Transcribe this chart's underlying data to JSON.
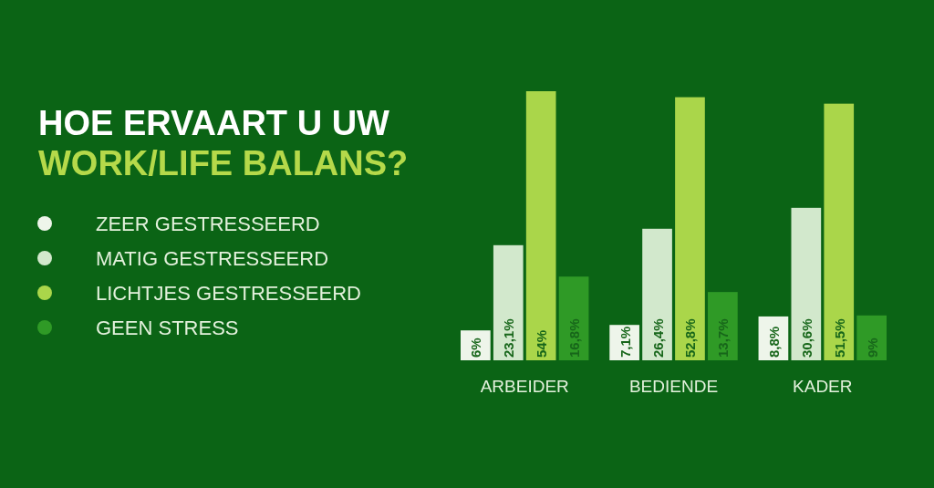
{
  "chart_data": {
    "type": "bar",
    "title": "HOE ERVAART U UW",
    "subtitle": "WORK/LIFE BALANS?",
    "categories": [
      "ARBEIDER",
      "BEDIENDE",
      "KADER"
    ],
    "series": [
      {
        "name": "ZEER GESTRESSEERD",
        "color": "#eef5ea",
        "values": [
          6,
          7.1,
          8.8
        ],
        "value_labels": [
          "6%",
          "7,1%",
          "8,8%"
        ]
      },
      {
        "name": "MATIG GESTRESSEERD",
        "color": "#d2e8cc",
        "values": [
          23.1,
          26.4,
          30.6
        ],
        "value_labels": [
          "23,1%",
          "26,4%",
          "30,6%"
        ]
      },
      {
        "name": "LICHTJES GESTRESSEERD",
        "color": "#aad64a",
        "values": [
          54,
          52.8,
          51.5
        ],
        "value_labels": [
          "54%",
          "52,8%",
          "51,5%"
        ]
      },
      {
        "name": "GEEN STRESS",
        "color": "#2f9a26",
        "values": [
          16.8,
          13.7,
          9
        ],
        "value_labels": [
          "16,8%",
          "13,7%",
          "9%"
        ]
      }
    ],
    "legend": "left"
  }
}
